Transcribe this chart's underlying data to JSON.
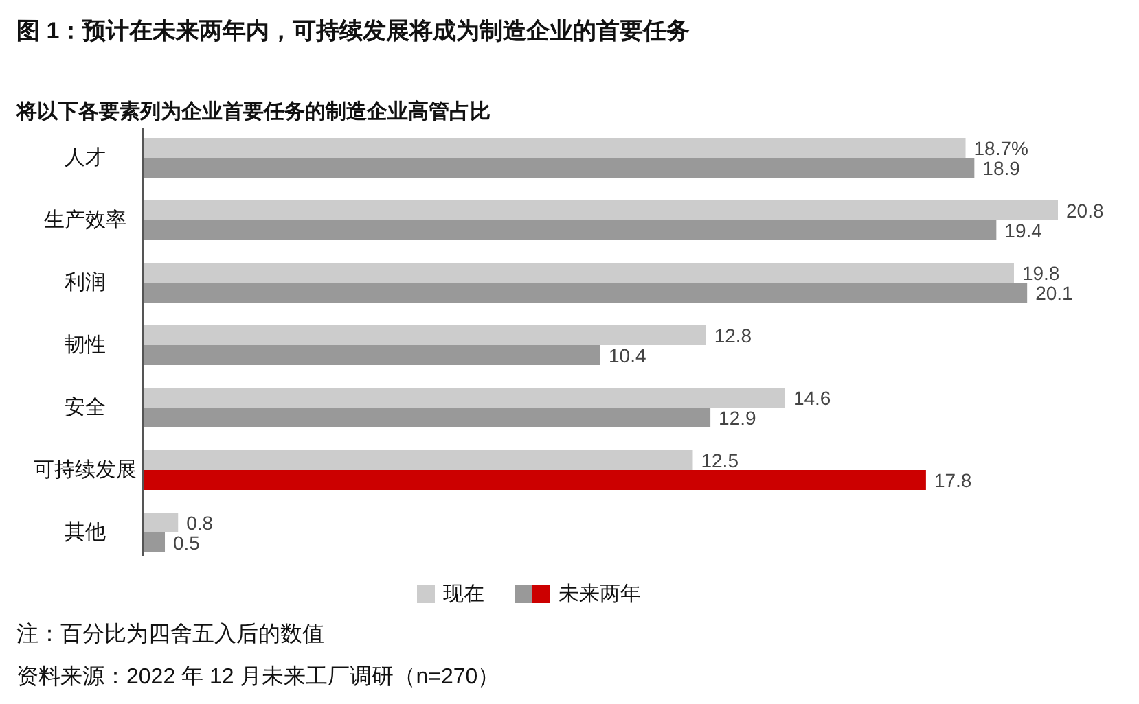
{
  "chart_data": {
    "type": "bar",
    "orientation": "horizontal",
    "title": "图 1：预计在未来两年内，可持续发展将成为制造企业的首要任务",
    "subtitle": "将以下各要素列为企业首要任务的制造企业高管占比",
    "categories": [
      "人才",
      "生产效率",
      "利润",
      "韧性",
      "安全",
      "可持续发展",
      "其他"
    ],
    "series": [
      {
        "name": "现在",
        "color": "#cccccc",
        "values": [
          18.7,
          20.8,
          19.8,
          12.8,
          14.6,
          12.5,
          0.8
        ],
        "value_labels": [
          "18.7%",
          "20.8",
          "19.8",
          "12.8",
          "14.6",
          "12.5",
          "0.8"
        ]
      },
      {
        "name": "未来两年",
        "color": "#999999",
        "colors": [
          "#999999",
          "#999999",
          "#999999",
          "#999999",
          "#999999",
          "#cc0000",
          "#999999"
        ],
        "values": [
          18.9,
          19.4,
          20.1,
          10.4,
          12.9,
          17.8,
          0.5
        ],
        "value_labels": [
          "18.9",
          "19.4",
          "20.1",
          "10.4",
          "12.9",
          "17.8",
          "0.5"
        ]
      }
    ],
    "legend": "bottom",
    "tick_labels": "y",
    "annotations": [
      "注：百分比为四舍五入后的数值",
      "资料来源：2022 年 12 月未来工厂调研（n=270）"
    ]
  }
}
